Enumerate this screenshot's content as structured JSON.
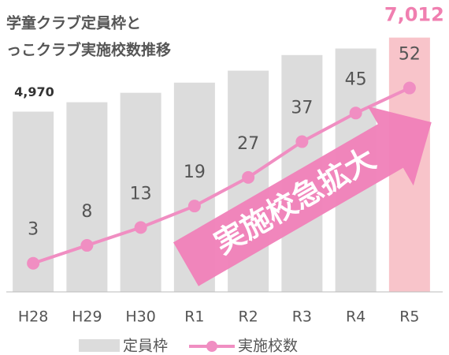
{
  "chart_data": {
    "type": "bar",
    "title": [
      "学童クラブ定員枠と",
      "っこクラブ実施校数推移"
    ],
    "categories": [
      "H28",
      "H29",
      "H30",
      "R1",
      "R2",
      "R3",
      "R4",
      "R5"
    ],
    "series": [
      {
        "name": "定員枠",
        "type": "bar",
        "colors": [
          "#dcdcdc",
          "#dcdcdc",
          "#dcdcdc",
          "#dcdcdc",
          "#dcdcdc",
          "#dcdcdc",
          "#dcdcdc",
          "#f8c4ca"
        ],
        "color": "#dcdcdc",
        "values": [
          4970,
          5230,
          5490,
          5770,
          6100,
          6530,
          6710,
          7012
        ],
        "value_labels": [
          "4,970",
          null,
          null,
          null,
          null,
          null,
          null,
          "7,012"
        ]
      },
      {
        "name": "実施校数",
        "type": "line",
        "axis": "y2",
        "color": "#f08ec2",
        "values": [
          3,
          8,
          13,
          19,
          27,
          37,
          45,
          52
        ]
      }
    ],
    "ylim": [
      0,
      7200
    ],
    "y2lim": [
      -5,
      68
    ],
    "annotation": "実施校急拡大"
  }
}
